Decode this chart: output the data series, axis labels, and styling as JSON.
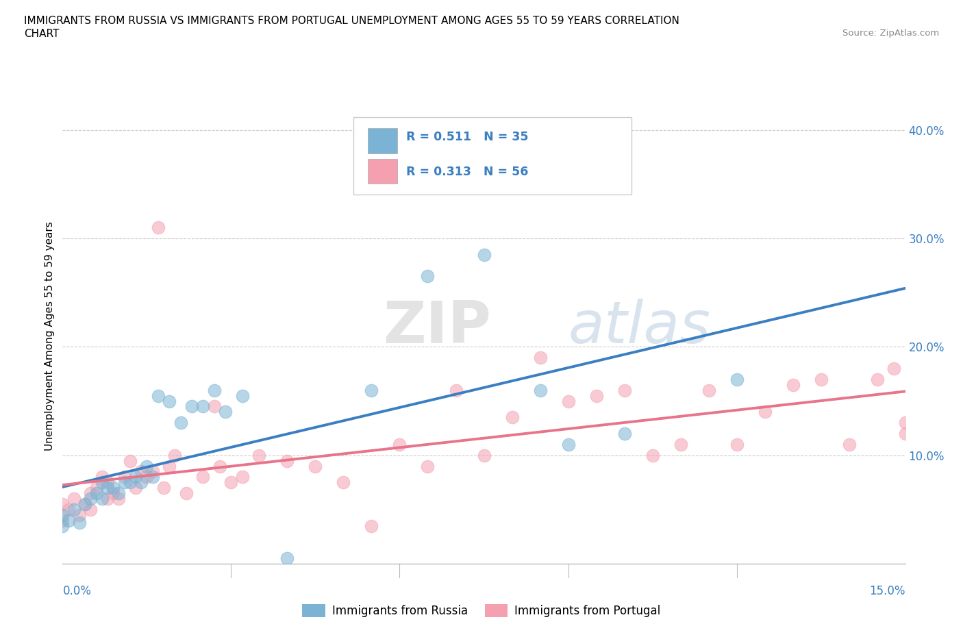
{
  "title_line1": "IMMIGRANTS FROM RUSSIA VS IMMIGRANTS FROM PORTUGAL UNEMPLOYMENT AMONG AGES 55 TO 59 YEARS CORRELATION",
  "title_line2": "CHART",
  "source_text": "Source: ZipAtlas.com",
  "ylabel": "Unemployment Among Ages 55 to 59 years",
  "xlim": [
    0.0,
    0.15
  ],
  "ylim": [
    0.0,
    0.42
  ],
  "ytick_vals": [
    0.1,
    0.2,
    0.3,
    0.4
  ],
  "ytick_labels": [
    "10.0%",
    "20.0%",
    "30.0%",
    "40.0%"
  ],
  "russia_color": "#7ab3d4",
  "portugal_color": "#f4a0b0",
  "russia_R": "0.511",
  "russia_N": "35",
  "portugal_R": "0.313",
  "portugal_N": "56",
  "watermark_zip": "ZIP",
  "watermark_atlas": "atlas",
  "russia_x": [
    0.0,
    0.0,
    0.001,
    0.002,
    0.003,
    0.004,
    0.005,
    0.006,
    0.007,
    0.007,
    0.008,
    0.009,
    0.01,
    0.011,
    0.012,
    0.013,
    0.014,
    0.015,
    0.016,
    0.017,
    0.019,
    0.021,
    0.023,
    0.025,
    0.027,
    0.029,
    0.032,
    0.04,
    0.055,
    0.065,
    0.075,
    0.085,
    0.09,
    0.1,
    0.12
  ],
  "russia_y": [
    0.035,
    0.045,
    0.04,
    0.05,
    0.038,
    0.055,
    0.06,
    0.065,
    0.06,
    0.075,
    0.07,
    0.07,
    0.065,
    0.075,
    0.075,
    0.08,
    0.075,
    0.09,
    0.08,
    0.155,
    0.15,
    0.13,
    0.145,
    0.145,
    0.16,
    0.14,
    0.155,
    0.005,
    0.16,
    0.265,
    0.285,
    0.16,
    0.11,
    0.12,
    0.17
  ],
  "portugal_x": [
    0.0,
    0.0,
    0.001,
    0.002,
    0.003,
    0.004,
    0.005,
    0.005,
    0.006,
    0.007,
    0.008,
    0.008,
    0.009,
    0.01,
    0.011,
    0.012,
    0.013,
    0.014,
    0.015,
    0.016,
    0.017,
    0.018,
    0.019,
    0.02,
    0.022,
    0.025,
    0.027,
    0.028,
    0.03,
    0.032,
    0.035,
    0.04,
    0.045,
    0.05,
    0.055,
    0.06,
    0.065,
    0.07,
    0.075,
    0.08,
    0.085,
    0.09,
    0.095,
    0.1,
    0.105,
    0.11,
    0.115,
    0.12,
    0.125,
    0.13,
    0.135,
    0.14,
    0.145,
    0.148,
    0.15,
    0.15
  ],
  "portugal_y": [
    0.04,
    0.055,
    0.05,
    0.06,
    0.045,
    0.055,
    0.05,
    0.065,
    0.07,
    0.08,
    0.075,
    0.06,
    0.065,
    0.06,
    0.08,
    0.095,
    0.07,
    0.085,
    0.08,
    0.085,
    0.31,
    0.07,
    0.09,
    0.1,
    0.065,
    0.08,
    0.145,
    0.09,
    0.075,
    0.08,
    0.1,
    0.095,
    0.09,
    0.075,
    0.035,
    0.11,
    0.09,
    0.16,
    0.1,
    0.135,
    0.19,
    0.15,
    0.155,
    0.16,
    0.1,
    0.11,
    0.16,
    0.11,
    0.14,
    0.165,
    0.17,
    0.11,
    0.17,
    0.18,
    0.12,
    0.13
  ]
}
